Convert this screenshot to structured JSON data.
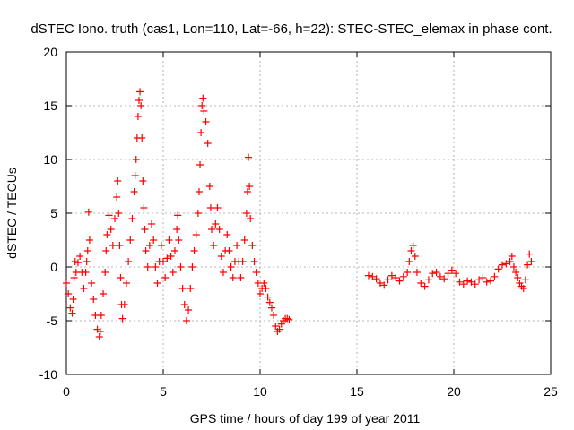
{
  "chart_data": {
    "type": "scatter",
    "title": "dSTEC Iono. truth (cas1, Lon=110, Lat=-66, h=22): STEC-STEC_elemax in phase cont.",
    "xlabel": "GPS time / hours of day 199 of year 2011",
    "ylabel": "dSTEC  / TECUs",
    "xlim": [
      0,
      25
    ],
    "ylim": [
      -10,
      20
    ],
    "xticks": [
      0,
      5,
      10,
      15,
      20,
      25
    ],
    "yticks": [
      -10,
      -5,
      0,
      5,
      10,
      15,
      20
    ],
    "grid": true,
    "marker": "+",
    "color": "#ff0000",
    "series": [
      {
        "name": "",
        "points": [
          [
            0.0,
            -1.5
          ],
          [
            0.1,
            -2.5
          ],
          [
            0.2,
            -3.8
          ],
          [
            0.3,
            -4.3
          ],
          [
            0.35,
            -3.0
          ],
          [
            0.4,
            -1.0
          ],
          [
            0.45,
            0.5
          ],
          [
            0.5,
            -0.5
          ],
          [
            0.6,
            0.4
          ],
          [
            0.7,
            1.0
          ],
          [
            0.8,
            -0.5
          ],
          [
            0.9,
            -2.0
          ],
          [
            1.0,
            -0.5
          ],
          [
            1.05,
            0.5
          ],
          [
            1.1,
            1.5
          ],
          [
            1.15,
            5.1
          ],
          [
            1.2,
            2.5
          ],
          [
            1.3,
            -1.5
          ],
          [
            1.4,
            -3.0
          ],
          [
            1.5,
            -4.5
          ],
          [
            1.6,
            -5.8
          ],
          [
            1.7,
            -6.5
          ],
          [
            1.75,
            -6.0
          ],
          [
            1.8,
            -4.5
          ],
          [
            1.9,
            -2.5
          ],
          [
            2.0,
            -0.5
          ],
          [
            2.05,
            1.5
          ],
          [
            2.1,
            3.0
          ],
          [
            2.2,
            4.8
          ],
          [
            2.3,
            3.5
          ],
          [
            2.4,
            2.0
          ],
          [
            2.5,
            4.5
          ],
          [
            2.6,
            6.5
          ],
          [
            2.65,
            8.0
          ],
          [
            2.7,
            5.0
          ],
          [
            2.75,
            2.0
          ],
          [
            2.8,
            -1.0
          ],
          [
            2.85,
            -3.5
          ],
          [
            2.9,
            -4.8
          ],
          [
            3.0,
            -3.5
          ],
          [
            3.1,
            -1.5
          ],
          [
            3.2,
            0.5
          ],
          [
            3.3,
            2.5
          ],
          [
            3.4,
            4.5
          ],
          [
            3.5,
            7.0
          ],
          [
            3.55,
            8.5
          ],
          [
            3.6,
            10.0
          ],
          [
            3.65,
            12.0
          ],
          [
            3.7,
            14.0
          ],
          [
            3.75,
            15.5
          ],
          [
            3.8,
            16.3
          ],
          [
            3.85,
            15.0
          ],
          [
            3.9,
            12.0
          ],
          [
            3.95,
            8.0
          ],
          [
            4.0,
            5.5
          ],
          [
            4.05,
            3.5
          ],
          [
            4.1,
            1.5
          ],
          [
            4.2,
            0.0
          ],
          [
            4.3,
            2.0
          ],
          [
            4.4,
            4.0
          ],
          [
            4.5,
            2.5
          ],
          [
            4.6,
            0.0
          ],
          [
            4.7,
            -1.5
          ],
          [
            4.8,
            0.5
          ],
          [
            4.9,
            2.0
          ],
          [
            5.0,
            0.5
          ],
          [
            5.1,
            -1.0
          ],
          [
            5.2,
            0.8
          ],
          [
            5.3,
            2.5
          ],
          [
            5.4,
            1.0
          ],
          [
            5.5,
            -0.5
          ],
          [
            5.6,
            1.5
          ],
          [
            5.7,
            3.5
          ],
          [
            5.75,
            4.8
          ],
          [
            5.8,
            2.5
          ],
          [
            5.9,
            0.0
          ],
          [
            6.0,
            -2.0
          ],
          [
            6.1,
            -3.5
          ],
          [
            6.2,
            -5.0
          ],
          [
            6.3,
            -4.0
          ],
          [
            6.4,
            -2.0
          ],
          [
            6.5,
            0.0
          ],
          [
            6.6,
            1.5
          ],
          [
            6.7,
            3.0
          ],
          [
            6.8,
            5.0
          ],
          [
            6.85,
            7.0
          ],
          [
            6.9,
            9.5
          ],
          [
            6.95,
            12.5
          ],
          [
            7.0,
            15.0
          ],
          [
            7.05,
            15.7
          ],
          [
            7.1,
            14.5
          ],
          [
            7.2,
            13.5
          ],
          [
            7.3,
            11.5
          ],
          [
            7.4,
            7.5
          ],
          [
            7.45,
            5.5
          ],
          [
            7.5,
            3.5
          ],
          [
            7.6,
            2.0
          ],
          [
            7.7,
            4.0
          ],
          [
            7.8,
            5.5
          ],
          [
            7.9,
            3.5
          ],
          [
            8.0,
            1.0
          ],
          [
            8.1,
            -0.5
          ],
          [
            8.2,
            1.5
          ],
          [
            8.3,
            3.0
          ],
          [
            8.4,
            1.5
          ],
          [
            8.5,
            0.0
          ],
          [
            8.6,
            -1.0
          ],
          [
            8.7,
            0.5
          ],
          [
            8.8,
            2.0
          ],
          [
            8.9,
            0.5
          ],
          [
            9.0,
            -1.0
          ],
          [
            9.1,
            0.5
          ],
          [
            9.2,
            2.5
          ],
          [
            9.3,
            5.0
          ],
          [
            9.35,
            7.0
          ],
          [
            9.4,
            10.2
          ],
          [
            9.45,
            7.5
          ],
          [
            9.5,
            4.5
          ],
          [
            9.6,
            2.0
          ],
          [
            9.7,
            0.5
          ],
          [
            9.8,
            -0.5
          ],
          [
            9.9,
            -1.5
          ],
          [
            10.0,
            -2.5
          ],
          [
            10.1,
            -2.0
          ],
          [
            10.2,
            -1.5
          ],
          [
            10.3,
            -2.0
          ],
          [
            10.4,
            -2.8
          ],
          [
            10.5,
            -3.3
          ],
          [
            10.6,
            -3.8
          ],
          [
            10.7,
            -4.5
          ],
          [
            10.8,
            -5.5
          ],
          [
            10.9,
            -6.0
          ],
          [
            11.0,
            -5.8
          ],
          [
            11.1,
            -5.3
          ],
          [
            11.2,
            -5.0
          ],
          [
            11.3,
            -4.8
          ],
          [
            11.4,
            -4.8
          ],
          [
            11.5,
            -4.9
          ],
          [
            15.6,
            -0.8
          ],
          [
            15.8,
            -0.9
          ],
          [
            16.0,
            -1.1
          ],
          [
            16.2,
            -1.5
          ],
          [
            16.4,
            -1.7
          ],
          [
            16.6,
            -1.2
          ],
          [
            16.8,
            -0.8
          ],
          [
            17.0,
            -1.0
          ],
          [
            17.2,
            -1.3
          ],
          [
            17.4,
            -0.9
          ],
          [
            17.6,
            -0.5
          ],
          [
            17.7,
            0.5
          ],
          [
            17.8,
            1.5
          ],
          [
            17.9,
            2.0
          ],
          [
            18.0,
            1.0
          ],
          [
            18.1,
            -0.5
          ],
          [
            18.3,
            -1.5
          ],
          [
            18.5,
            -1.8
          ],
          [
            18.7,
            -1.2
          ],
          [
            18.9,
            -0.6
          ],
          [
            19.1,
            -0.5
          ],
          [
            19.3,
            -0.9
          ],
          [
            19.5,
            -1.1
          ],
          [
            19.7,
            -0.6
          ],
          [
            19.9,
            -0.3
          ],
          [
            20.1,
            -0.6
          ],
          [
            20.3,
            -1.4
          ],
          [
            20.5,
            -1.6
          ],
          [
            20.7,
            -1.3
          ],
          [
            20.9,
            -1.4
          ],
          [
            21.1,
            -1.6
          ],
          [
            21.3,
            -1.2
          ],
          [
            21.5,
            -1.0
          ],
          [
            21.7,
            -1.4
          ],
          [
            21.9,
            -1.3
          ],
          [
            22.1,
            -0.9
          ],
          [
            22.3,
            -0.2
          ],
          [
            22.5,
            0.2
          ],
          [
            22.7,
            0.3
          ],
          [
            22.9,
            0.5
          ],
          [
            23.0,
            1.0
          ],
          [
            23.1,
            0.0
          ],
          [
            23.2,
            -0.5
          ],
          [
            23.3,
            -1.0
          ],
          [
            23.4,
            -1.5
          ],
          [
            23.5,
            -1.8
          ],
          [
            23.6,
            -2.0
          ],
          [
            23.7,
            -1.2
          ],
          [
            23.8,
            0.2
          ],
          [
            23.9,
            1.2
          ],
          [
            24.0,
            0.5
          ]
        ]
      }
    ]
  }
}
